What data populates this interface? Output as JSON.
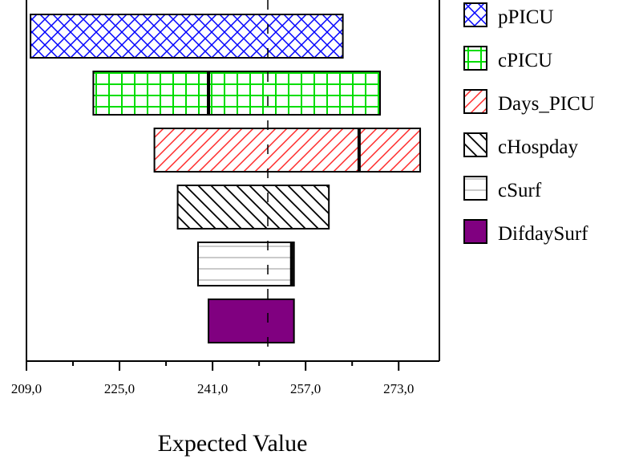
{
  "chart_data": {
    "type": "tornado",
    "xlabel": "Expected Value",
    "xlim": [
      209,
      280
    ],
    "x_ticks": [
      209,
      225,
      241,
      257,
      273
    ],
    "x_tick_labels": [
      "209,0",
      "225,0",
      "241,0",
      "257,0",
      "273,0"
    ],
    "base_value": 250.5,
    "legend_position": "right",
    "series": [
      {
        "name": "pPICU",
        "low": 209.7,
        "high": 263.4,
        "marker": null,
        "pattern": "crosshatch",
        "color": "#0000ff"
      },
      {
        "name": "cPICU",
        "low": 220.5,
        "high": 269.8,
        "marker": 240.3,
        "pattern": "grid",
        "color": "#00dd00"
      },
      {
        "name": "Days_PICU",
        "low": 231.0,
        "high": 276.7,
        "marker": 266.2,
        "pattern": "diagonal-up",
        "color": "#ff2a2a"
      },
      {
        "name": "cHospday",
        "low": 235.0,
        "high": 261.0,
        "marker": null,
        "pattern": "diagonal-down",
        "color": "#000000"
      },
      {
        "name": "cSurf",
        "low": 238.5,
        "high": 255.0,
        "marker": 254.6,
        "pattern": "horizontal",
        "color": "#999999"
      },
      {
        "name": "DifdaySurf",
        "low": 240.3,
        "high": 255.0,
        "marker": null,
        "pattern": "solid",
        "color": "#800080"
      }
    ]
  }
}
